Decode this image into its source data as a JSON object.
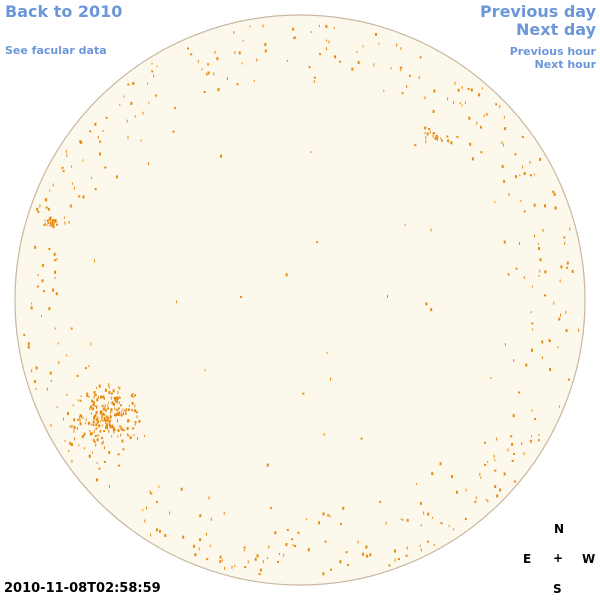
{
  "nav": {
    "back": "Back to 2010",
    "facular": "See facular data",
    "prev_day": "Previous day",
    "next_day": "Next day",
    "prev_hour": "Previous hour",
    "next_hour": "Next hour"
  },
  "timestamp": "2010-11-08T02:58:59",
  "compass": {
    "north": "N",
    "south": "S",
    "east": "E",
    "west": "W",
    "center": "+"
  },
  "colors": {
    "disk_fill": "#fdf8ec",
    "disk_border": "#c8b8a0",
    "spot": "#e88a10",
    "link": "#6b97d8"
  }
}
